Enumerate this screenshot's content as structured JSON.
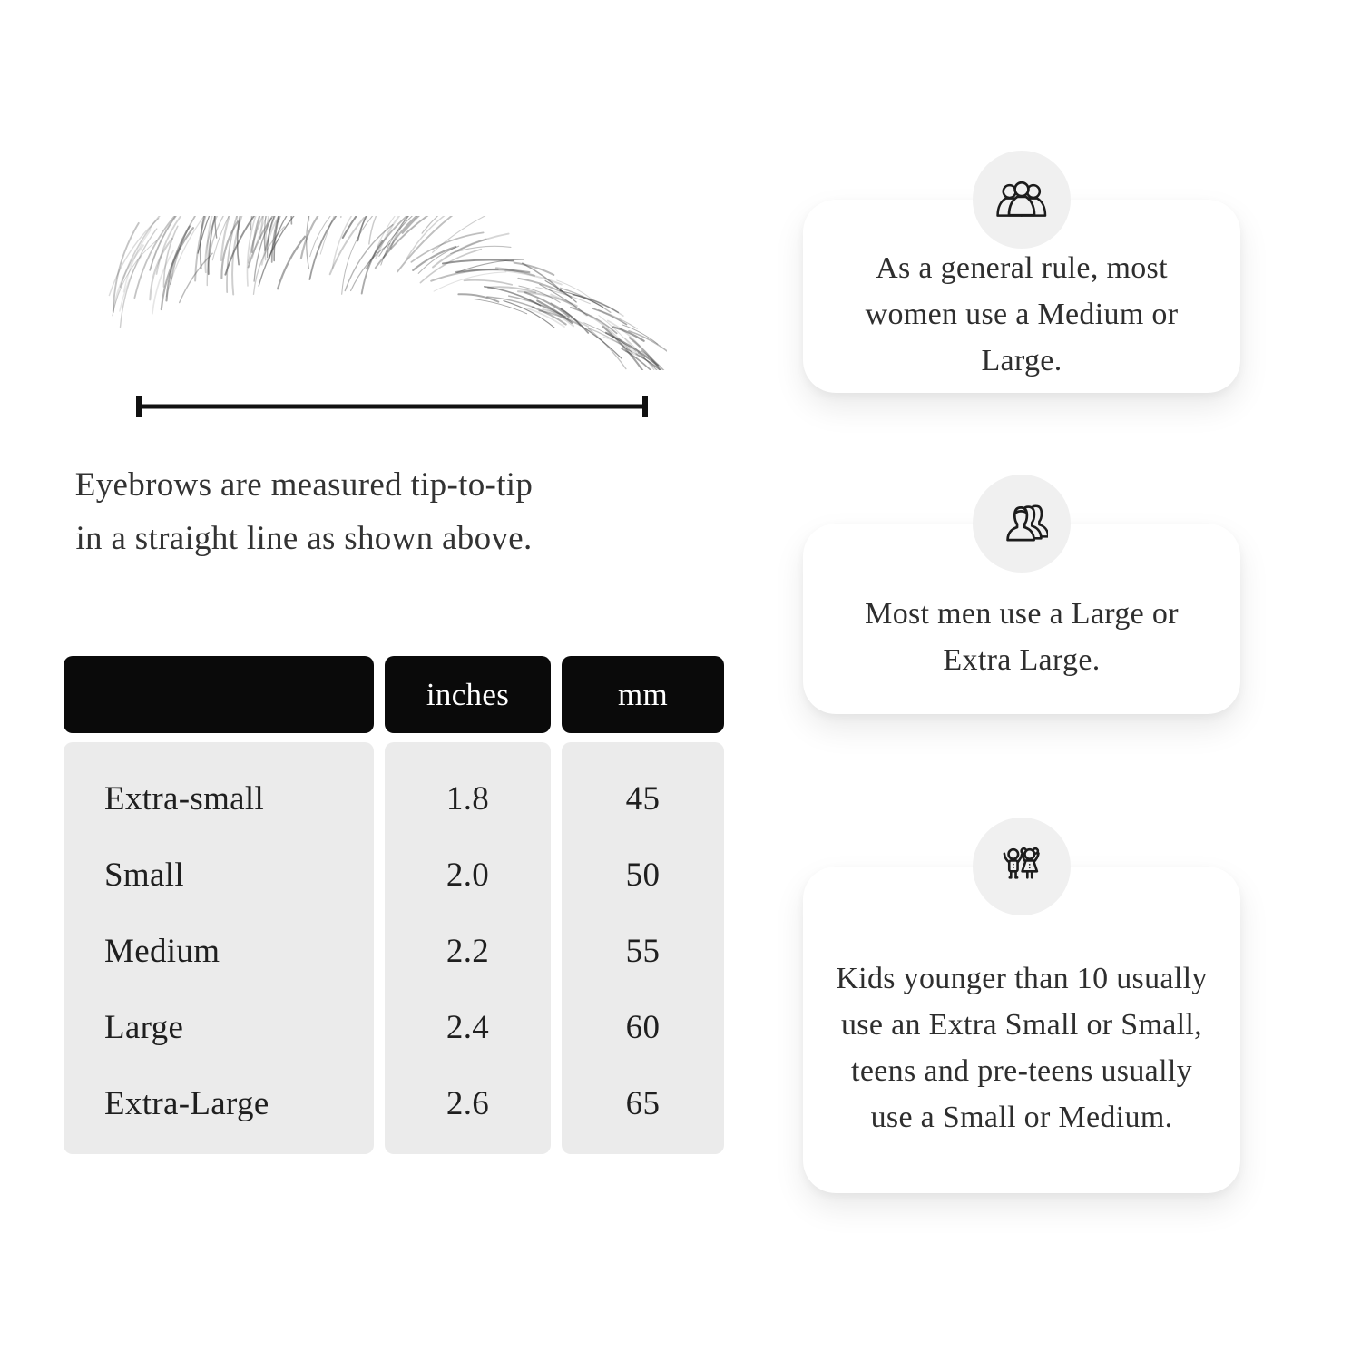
{
  "measurement": {
    "caption_lines": [
      "Eyebrows are measured tip-to-tip",
      "in a straight line as shown above."
    ]
  },
  "size_table": {
    "headers": {
      "size": "",
      "inches": "inches",
      "mm": "mm"
    },
    "rows": [
      {
        "size": "Extra-small",
        "inches": "1.8",
        "mm": "45"
      },
      {
        "size": "Small",
        "inches": "2.0",
        "mm": "50"
      },
      {
        "size": "Medium",
        "inches": "2.2",
        "mm": "55"
      },
      {
        "size": "Large",
        "inches": "2.4",
        "mm": "60"
      },
      {
        "size": "Extra-Large",
        "inches": "2.6",
        "mm": "65"
      }
    ],
    "colors": {
      "header_bg": "#0a0a0a",
      "header_text": "#ffffff",
      "body_bg": "#ebebeb"
    }
  },
  "cards": [
    {
      "icon": "women-group-icon",
      "text": "As a general rule, most women use a Medium or Large."
    },
    {
      "icon": "men-group-icon",
      "text": "Most men use a Large or Extra Large."
    },
    {
      "icon": "kids-icon",
      "text": "Kids younger than 10 usually use an Extra Small or Small, teens and pre-teens usually use a Small or Medium."
    }
  ]
}
